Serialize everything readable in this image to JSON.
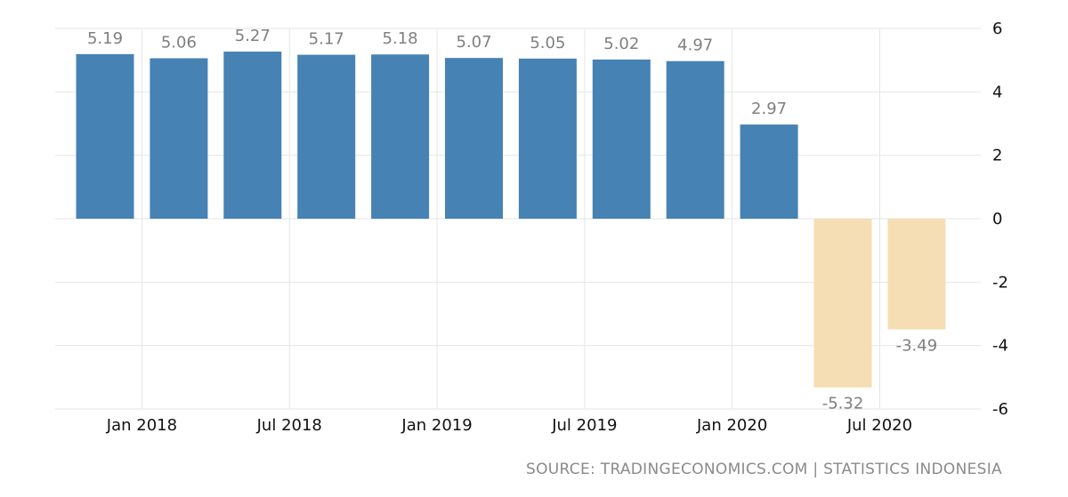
{
  "chart_data": {
    "type": "bar",
    "title": "",
    "xlabel": "",
    "ylabel": "",
    "ylim": [
      -6,
      6
    ],
    "yticks": [
      6,
      4,
      2,
      0,
      -2,
      -4,
      -6
    ],
    "categories": [
      "2018-Q1",
      "2018-Q2",
      "2018-Q3",
      "2018-Q4",
      "2019-Q1",
      "2019-Q2",
      "2019-Q3",
      "2019-Q4",
      "2020-Q1",
      "2020-Q2",
      "2020-Q3",
      "2020-Q4"
    ],
    "values": [
      5.19,
      5.06,
      5.27,
      5.17,
      5.18,
      5.07,
      5.05,
      5.02,
      4.97,
      2.97,
      -5.32,
      -3.49
    ],
    "value_labels": [
      "5.19",
      "5.06",
      "5.27",
      "5.17",
      "5.18",
      "5.07",
      "5.05",
      "5.02",
      "4.97",
      "2.97",
      "-5.32",
      "-3.49"
    ],
    "x_tick_labels": [
      {
        "label": "Jan 2018",
        "index": 0.5
      },
      {
        "label": "Jul 2018",
        "index": 2.5
      },
      {
        "label": "Jan 2019",
        "index": 4.5
      },
      {
        "label": "Jul 2019",
        "index": 6.5
      },
      {
        "label": "Jan 2020",
        "index": 8.5
      },
      {
        "label": "Jul 2020",
        "index": 10.5
      }
    ],
    "colors": {
      "positive": "#4682b4",
      "negative": "#f5deb3",
      "grid": "#e6e6e6"
    },
    "grid": true,
    "legend": "none"
  },
  "source": "SOURCE: TRADINGECONOMICS.COM | STATISTICS INDONESIA"
}
